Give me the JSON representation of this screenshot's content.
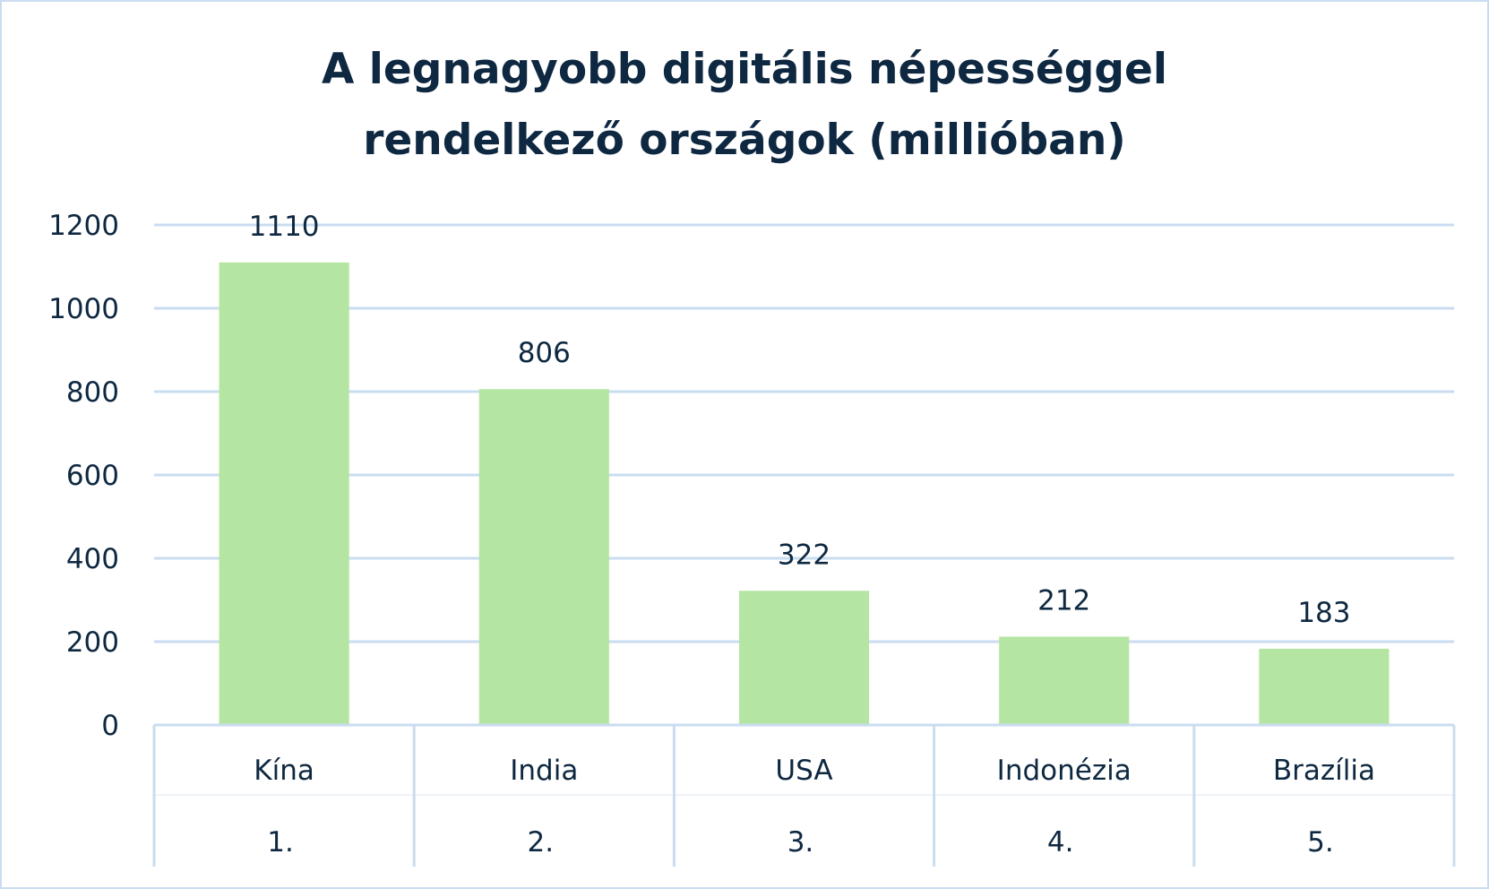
{
  "chart_data": {
    "type": "bar",
    "title_lines": [
      "A legnagyobb digitális népességgel",
      "rendelkező országok (millióban)"
    ],
    "categories": [
      "Kína",
      "India",
      "USA",
      "Indonézia",
      "Brazília"
    ],
    "ranks": [
      "1.",
      "2.",
      "3.",
      "4.",
      "5."
    ],
    "values": [
      1110,
      806,
      322,
      212,
      183
    ],
    "yticks": [
      "0",
      "200",
      "400",
      "600",
      "800",
      "1000",
      "1200"
    ],
    "ylim": [
      0,
      1200
    ],
    "grid": true,
    "legend": "none",
    "colors": {
      "bar": "#b5e5a2",
      "grid": "#c9dcf0",
      "text": "#0e2841"
    }
  }
}
